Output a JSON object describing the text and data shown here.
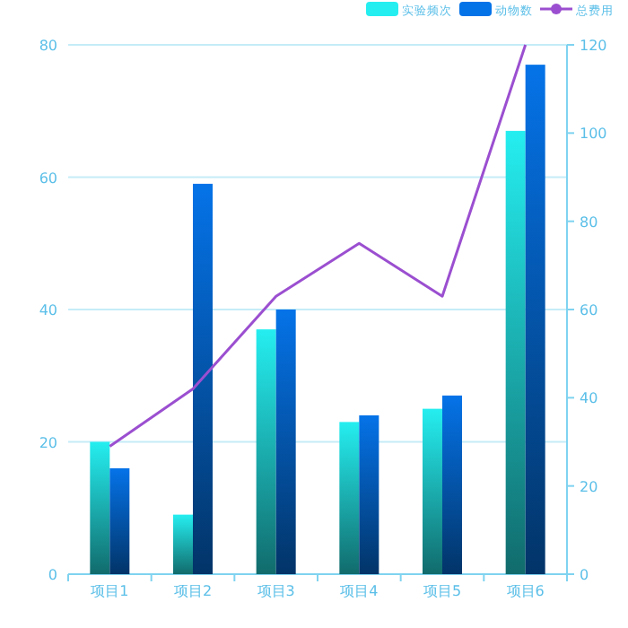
{
  "chart_data": {
    "type": "bar",
    "categories": [
      "项目1",
      "项目2",
      "项目3",
      "项目4",
      "项目5",
      "项目6"
    ],
    "series": [
      {
        "name": "实验频次",
        "color": "#25eef0",
        "values": [
          20,
          9,
          37,
          23,
          25,
          67
        ]
      },
      {
        "name": "动物数",
        "color": "#0573e8",
        "values": [
          16,
          59,
          40,
          24,
          27,
          77
        ]
      },
      {
        "name": "总费用",
        "type": "line",
        "axis": "y2",
        "color": "#9b4fd0",
        "values": [
          29,
          42,
          63,
          75,
          63,
          120
        ]
      }
    ],
    "ylim": [
      0,
      80
    ],
    "yticks": [
      0,
      20,
      40,
      60,
      80
    ],
    "y2lim": [
      0,
      120
    ],
    "y2ticks": [
      0,
      20,
      40,
      60,
      80,
      100,
      120
    ],
    "grid": "y",
    "legend": "top right",
    "marker": "none",
    "line_style": "solid"
  }
}
